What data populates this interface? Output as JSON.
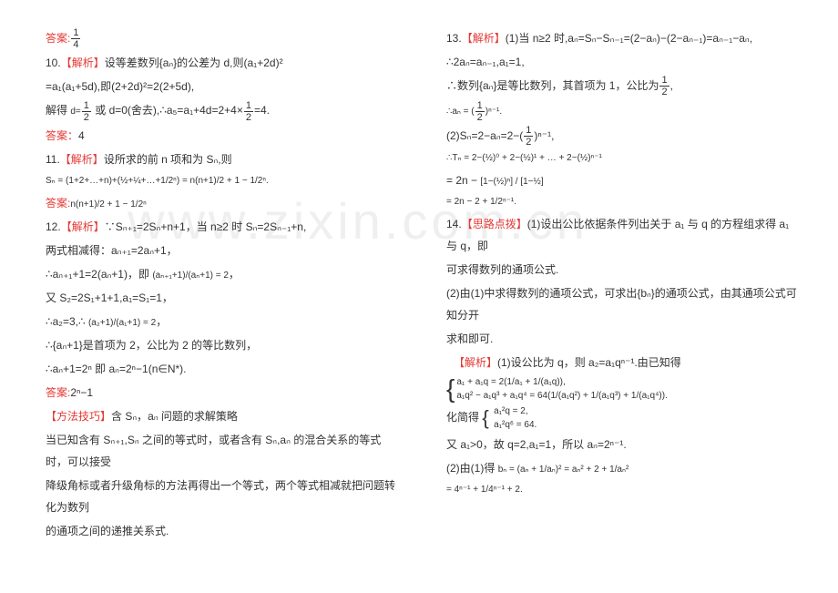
{
  "watermark": "www.zixin.com.cn",
  "left": {
    "l1a": "答案:",
    "l1b_num": "1",
    "l1b_den": "4",
    "l2a": "10.",
    "l2b": "【解析】",
    "l2c": "设等差数列{aₙ}的公差为 d,则(a₁+2d)²",
    "l3": "=a₁(a₁+5d),即(2+2d)²=2(2+5d),",
    "l4a": "解得",
    "l4b": "d=",
    "l4b_num": "1",
    "l4b_den": "2",
    "l4c": "或 d=0(舍去),∴a₅=a₁+4d=2+4×",
    "l4c_num": "1",
    "l4c_den": "2",
    "l4d": "=4.",
    "l5a": "答案：",
    "l5b": "4",
    "l6a": "11.",
    "l6b": "【解析】",
    "l6c": "设所求的前 n 项和为 Sₙ,则",
    "l7": "Sₙ = (1+2+…+n)+(½+¼+…+1/2ⁿ) = n(n+1)/2 + 1 − 1/2ⁿ.",
    "l8a": "答案:",
    "l8b": "n(n+1)/2 + 1 − 1/2ⁿ",
    "l9a": "12.",
    "l9b": "【解析】",
    "l9c": "∵Sₙ₊₁=2Sₙ+n+1，当 n≥2 时 Sₙ=2Sₙ₋₁+n,",
    "l10": "两式相减得：aₙ₊₁=2aₙ+1，",
    "l11a": "∴aₙ₊₁+1=2(aₙ+1)，即",
    "l11b": "(aₙ₊₁+1)/(aₙ+1) = 2",
    "l11c": "，",
    "l12": "又 S₂=2S₁+1+1,a₁=S₁=1，",
    "l13a": "∴a₂=3,∴",
    "l13b": "(a₂+1)/(a₁+1) = 2",
    "l13c": "，",
    "l14": "∴{aₙ+1}是首项为 2，公比为 2 的等比数列，",
    "l15": "∴aₙ+1=2ⁿ 即 aₙ=2ⁿ−1(n∈N*).",
    "l16a": "答案:",
    "l16b": "2ⁿ−1",
    "l17": "【方法技巧】",
    "l17b": "含 Sₙ，aₙ 问题的求解策略",
    "l18": "当已知含有 Sₙ₊₁,Sₙ 之间的等式时，或者含有 Sₙ,aₙ 的混合关系的等式时，可以接受",
    "l19": "降级角标或者升级角标的方法再得出一个等式，两个等式相减就把问题转化为数列",
    "l20": "的通项之间的递推关系式."
  },
  "right": {
    "r1a": "13.",
    "r1b": "【解析】",
    "r1c": "(1)当 n≥2 时,aₙ=Sₙ−Sₙ₋₁=(2−aₙ)−(2−aₙ₋₁)=aₙ₋₁−aₙ,",
    "r2": "∴2aₙ=aₙ₋₁,a₁=1,",
    "r3a": "∴数列{aₙ}是等比数列，其首项为 1，公比为",
    "r3_num": "1",
    "r3_den": "2",
    "r3b": ",",
    "r4a": "∴aₙ = (",
    "r4_num": "1",
    "r4_den": "2",
    "r4b": ")ⁿ⁻¹.",
    "r5a": "(2)Sₙ=2−aₙ=2−(",
    "r5_num": "1",
    "r5_den": "2",
    "r5b": ")ⁿ⁻¹,",
    "r6": "∴Tₙ = 2−(½)⁰ + 2−(½)¹ + … + 2−(½)ⁿ⁻¹",
    "r7a": "= 2n −",
    "r7b": "[1−(½)ⁿ] / [1−½]",
    "r8": "= 2n − 2 + 1/2ⁿ⁻¹.",
    "r9a": "14.",
    "r9b": "【思路点拨】",
    "r9c": "(1)设出公比依据条件列出关于 a₁ 与 q 的方程组求得 a₁ 与 q，即",
    "r10": "可求得数列的通项公式.",
    "r11": "(2)由(1)中求得数列的通项公式，可求出{bₙ}的通项公式，由其通项公式可知分开",
    "r12": "求和即可.",
    "r13a": "【解析】",
    "r13b": "(1)设公比为 q，则 a₂=a₁qⁿ⁻¹.由已知得",
    "r14a": "a₁ + a₁q = 2(1/a₁ + 1/(a₁q)),",
    "r14b": "a₁q² − a₁q³ + a₁q⁴ = 64(1/(a₁q²) + 1/(a₁q³) + 1/(a₁q⁴)).",
    "r15a": "化简得",
    "r15b": "a₁²q = 2,",
    "r15c": "a₁²q⁶ = 64.",
    "r16": "又 a₁>0，故 q=2,a₁=1，所以 aₙ=2ⁿ⁻¹.",
    "r17a": "(2)由(1)得",
    "r17b": "bₙ = (aₙ + 1/aₙ)² = aₙ² + 2 + 1/aₙ²",
    "r18": "= 4ⁿ⁻¹ + 1/4ⁿ⁻¹ + 2."
  },
  "colors": {
    "red": "#e53935",
    "text": "#333333",
    "watermark": "#efefef",
    "background": "#ffffff"
  }
}
